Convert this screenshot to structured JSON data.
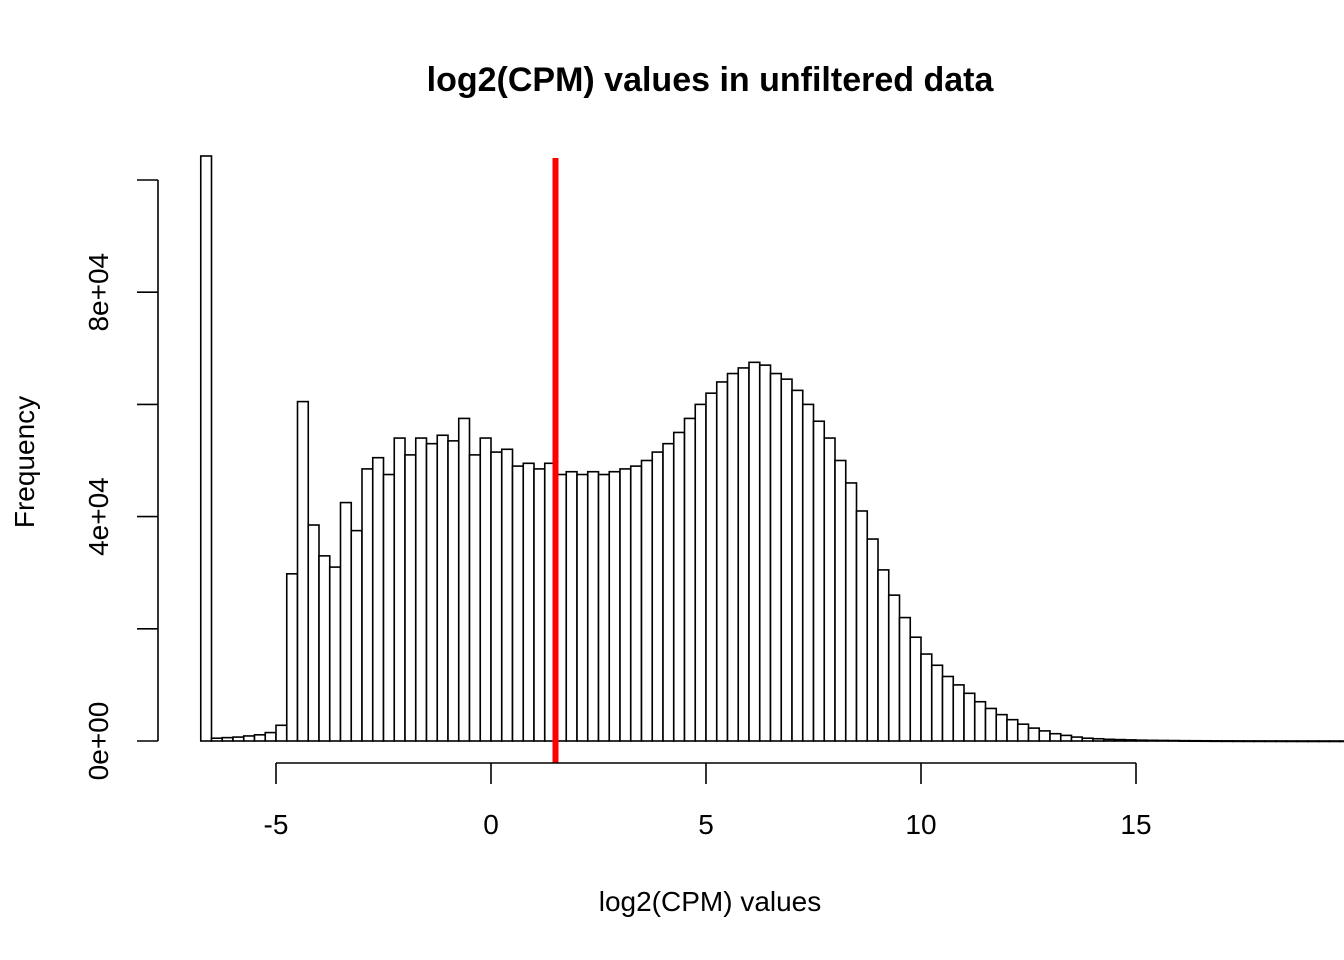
{
  "chart_data": {
    "type": "bar",
    "title": "log2(CPM) values in unfiltered data",
    "xlabel": "log2(CPM) values",
    "ylabel": "Frequency",
    "xlim": [
      -6.8,
      17.0
    ],
    "ylim": [
      0,
      100000
    ],
    "x_ticks": [
      -5,
      0,
      5,
      10,
      15
    ],
    "x_tick_labels": [
      "-5",
      "0",
      "5",
      "10",
      "15"
    ],
    "y_ticks": [
      0,
      20000,
      40000,
      60000,
      80000,
      100000
    ],
    "y_tick_labels": [
      "0e+00",
      "",
      "4e+04",
      "",
      "8e+04",
      ""
    ],
    "bin_start": -6.75,
    "bin_width": 0.25,
    "first_bin_clipped": true,
    "frequencies": [
      110000,
      500,
      600,
      700,
      900,
      1100,
      1500,
      2800,
      29800,
      60500,
      38500,
      33000,
      31000,
      42500,
      37500,
      48500,
      50500,
      47500,
      54000,
      51000,
      54000,
      53000,
      54500,
      53500,
      57500,
      51000,
      54000,
      51500,
      52000,
      49000,
      49500,
      48500,
      49500,
      47500,
      48000,
      47500,
      48000,
      47500,
      48000,
      48500,
      49000,
      50000,
      51500,
      53000,
      55000,
      57500,
      60000,
      62000,
      64000,
      65500,
      66500,
      67500,
      67000,
      65500,
      64500,
      62500,
      60000,
      57000,
      54000,
      50000,
      46000,
      41000,
      36000,
      30500,
      26000,
      22000,
      18500,
      15500,
      13500,
      11500,
      10000,
      8500,
      7000,
      5800,
      4700,
      3800,
      3000,
      2300,
      1800,
      1300,
      1000,
      700,
      500,
      400,
      300,
      250,
      200,
      150,
      120,
      100,
      80,
      60,
      50,
      40,
      30,
      25,
      20,
      15,
      12,
      10,
      8,
      6,
      4,
      3,
      2,
      2,
      1,
      1,
      1,
      1,
      1,
      1,
      1,
      1,
      1
    ],
    "threshold_line": {
      "x": 1.5,
      "color": "#ff0000"
    }
  }
}
